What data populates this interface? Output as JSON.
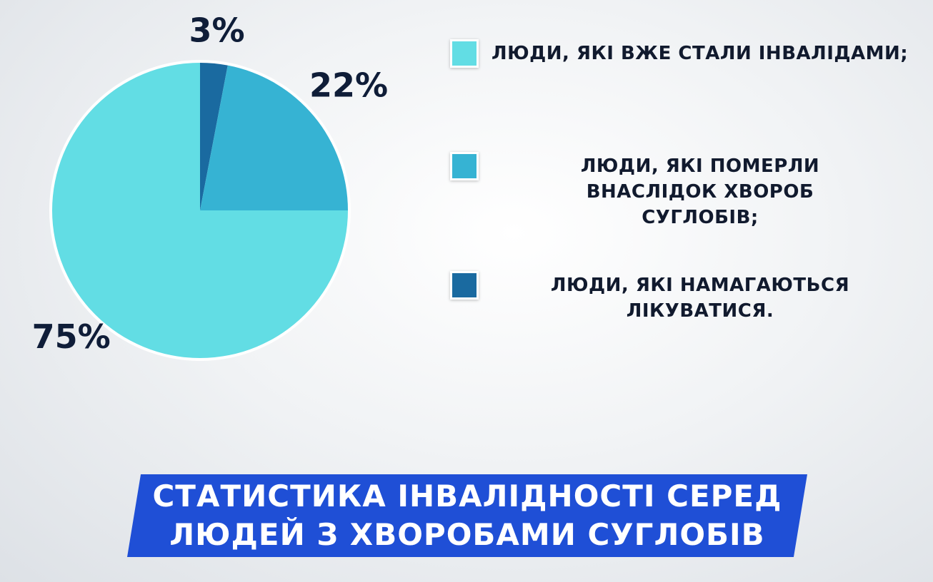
{
  "chart_data": {
    "type": "pie",
    "title": "СТАТИСТИКА ІНВАЛІДНОСТІ СЕРЕД ЛЮДЕЙ З ХВОРОБАМИ СУГЛОБІВ",
    "categories": [
      "ЛЮДИ, ЯКІ ВЖЕ СТАЛИ ІНВАЛІДАМИ;",
      "ЛЮДИ, ЯКІ ПОМЕРЛИ ВНАСЛІДОК ХВОРОБ СУГЛОБІВ;",
      "ЛЮДИ, ЯКІ НАМАГАЮТЬСЯ ЛІКУВАТИСЯ."
    ],
    "values": [
      75,
      22,
      3
    ],
    "value_labels": [
      "75%",
      "22%",
      "3%"
    ],
    "colors": [
      "#62dde4",
      "#36b3d3",
      "#1a6aa0"
    ]
  }
}
